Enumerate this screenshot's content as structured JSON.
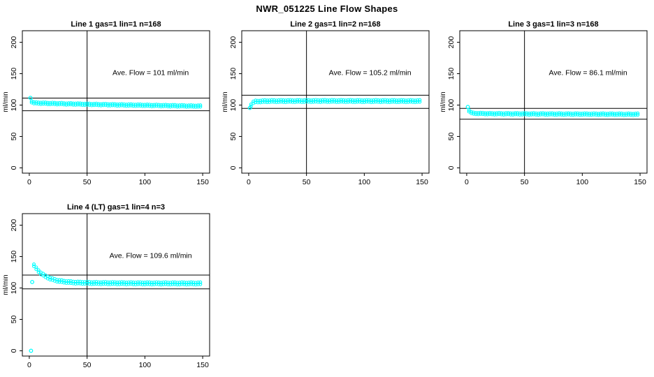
{
  "page": {
    "title": "NWR_051225  Line Flow Shapes"
  },
  "colors": {
    "point_color": "#00FFFF",
    "axis_color": "#000000",
    "background": "#FFFFFF"
  },
  "chart_data": [
    {
      "type": "scatter",
      "title": "Line 1 gas=1 lin=1 n=168",
      "line": 1,
      "gas": 1,
      "lin": 1,
      "n": 168,
      "xlabel": "",
      "ylabel": "ml/min",
      "xlim": [
        0,
        150
      ],
      "ylim": [
        0,
        210
      ],
      "xticks": [
        0,
        50,
        100,
        150
      ],
      "yticks": [
        0,
        50,
        100,
        150,
        200
      ],
      "grid": false,
      "legend": "none",
      "ave_flow": 101,
      "ave_flow_label": "Ave. Flow =  101  ml/min",
      "annotation_xy": [
        105,
        148
      ],
      "vline_x": 50,
      "hlines": [
        111.1,
        90.9
      ],
      "marker": "open-circle",
      "point_spacing": 2,
      "band_halfwidth": 1.2,
      "lead_points": [
        [
          1,
          111.5
        ]
      ],
      "flow_profile": [
        [
          2,
          105.5
        ],
        [
          4,
          103.5
        ],
        [
          10,
          103
        ],
        [
          30,
          102
        ],
        [
          60,
          100.8
        ],
        [
          100,
          99.6
        ],
        [
          149,
          98.2
        ]
      ]
    },
    {
      "type": "scatter",
      "title": "Line 2 gas=1 lin=2 n=168",
      "line": 2,
      "gas": 1,
      "lin": 2,
      "n": 168,
      "xlabel": "",
      "ylabel": "ml/min",
      "xlim": [
        0,
        150
      ],
      "ylim": [
        0,
        210
      ],
      "xticks": [
        0,
        50,
        100,
        150
      ],
      "yticks": [
        0,
        50,
        100,
        150,
        200
      ],
      "grid": false,
      "legend": "none",
      "ave_flow": 105.2,
      "ave_flow_label": "Ave. Flow =  105.2  ml/min",
      "annotation_xy": [
        105,
        148
      ],
      "vline_x": 50,
      "hlines": [
        115.7,
        94.7
      ],
      "marker": "open-circle",
      "point_spacing": 2,
      "band_halfwidth": 1.5,
      "lead_points": [
        [
          1,
          95.5
        ]
      ],
      "flow_profile": [
        [
          2,
          100
        ],
        [
          3,
          103
        ],
        [
          5,
          105.5
        ],
        [
          15,
          106.3
        ],
        [
          60,
          106.5
        ],
        [
          149,
          106.3
        ]
      ]
    },
    {
      "type": "scatter",
      "title": "Line 3 gas=1 lin=3 n=168",
      "line": 3,
      "gas": 1,
      "lin": 3,
      "n": 168,
      "xlabel": "",
      "ylabel": "ml/min",
      "xlim": [
        0,
        150
      ],
      "ylim": [
        0,
        210
      ],
      "xticks": [
        0,
        50,
        100,
        150
      ],
      "yticks": [
        0,
        50,
        100,
        150,
        200
      ],
      "grid": false,
      "legend": "none",
      "ave_flow": 86.1,
      "ave_flow_label": "Ave. Flow =  86.1  ml/min",
      "annotation_xy": [
        105,
        148
      ],
      "vline_x": 50,
      "hlines": [
        94.7,
        77.5
      ],
      "marker": "open-circle",
      "point_spacing": 2,
      "band_halfwidth": 1.2,
      "lead_points": [
        [
          1,
          97
        ]
      ],
      "flow_profile": [
        [
          2,
          91
        ],
        [
          3,
          88.5
        ],
        [
          6,
          86.8
        ],
        [
          20,
          86.2
        ],
        [
          60,
          85.8
        ],
        [
          149,
          85.3
        ]
      ]
    },
    {
      "type": "scatter",
      "title": "Line 4 (LT) gas=1 lin=4 n=3",
      "line": 4,
      "gas": 1,
      "lin": 4,
      "n": 3,
      "xlabel": "",
      "ylabel": "ml/min",
      "xlim": [
        0,
        150
      ],
      "ylim": [
        0,
        210
      ],
      "xticks": [
        0,
        50,
        100,
        150
      ],
      "yticks": [
        0,
        50,
        100,
        150,
        200
      ],
      "grid": false,
      "legend": "none",
      "ave_flow": 109.6,
      "ave_flow_label": "Ave. Flow =  109.6  ml/min",
      "annotation_xy": [
        105,
        148
      ],
      "vline_x": 50,
      "hlines": [
        120.6,
        98.6
      ],
      "marker": "open-circle",
      "point_spacing": 2,
      "band_halfwidth": 1.6,
      "lead_points": [
        [
          1.5,
          0
        ],
        [
          2.5,
          109.5
        ]
      ],
      "flow_profile": [
        [
          4,
          136
        ],
        [
          6,
          131
        ],
        [
          8,
          127
        ],
        [
          10,
          123.5
        ],
        [
          14,
          118.5
        ],
        [
          18,
          115
        ],
        [
          24,
          111.8
        ],
        [
          30,
          110
        ],
        [
          40,
          108.6
        ],
        [
          60,
          107.8
        ],
        [
          100,
          107.4
        ],
        [
          149,
          107.2
        ]
      ]
    }
  ]
}
